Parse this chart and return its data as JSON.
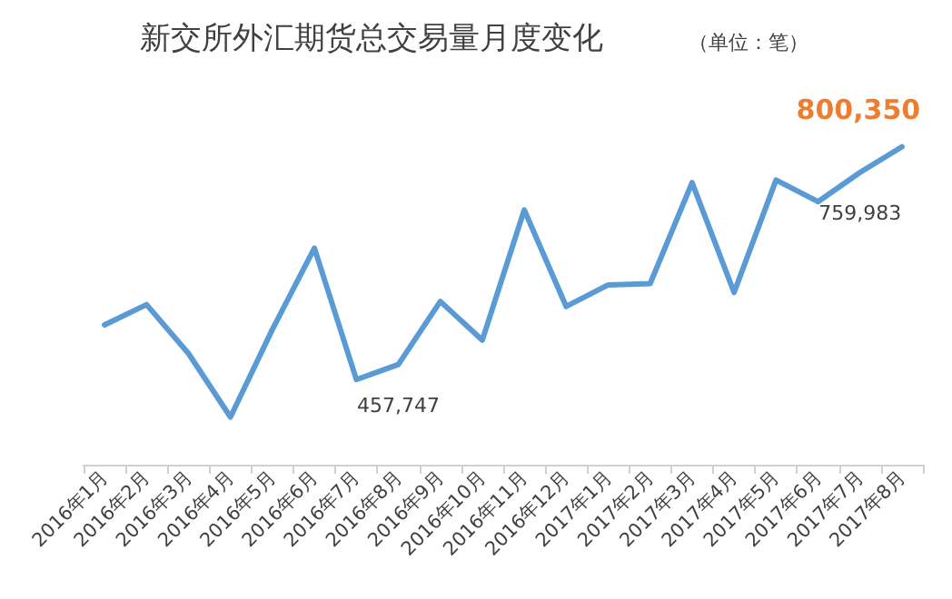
{
  "chart_data": {
    "type": "line",
    "title": "新交所外汇期货总交易量月度变化",
    "subtitle": "（单位：笔）",
    "categories": [
      "2016年1月",
      "2016年2月",
      "2016年3月",
      "2016年4月",
      "2016年5月",
      "2016年6月",
      "2016年7月",
      "2016年8月",
      "2016年9月",
      "2016年10月",
      "2016年11月",
      "2016年12月",
      "2017年1月",
      "2017年2月",
      "2017年3月",
      "2017年4月",
      "2017年5月",
      "2017年6月",
      "2017年7月",
      "2017年8月"
    ],
    "series": [
      {
        "color": "#5b9bd5",
        "values": [
          520000,
          552000,
          475000,
          375000,
          513000,
          641000,
          434000,
          457747,
          557000,
          496000,
          701000,
          549000,
          583000,
          585000,
          744000,
          571000,
          748000,
          714000,
          759983,
          800350
        ],
        "value_labels": [
          null,
          null,
          null,
          null,
          null,
          null,
          null,
          "457,747",
          null,
          null,
          null,
          null,
          null,
          null,
          null,
          null,
          null,
          null,
          "759,983",
          "800,350"
        ]
      }
    ],
    "marker": "none",
    "grid": false
  }
}
